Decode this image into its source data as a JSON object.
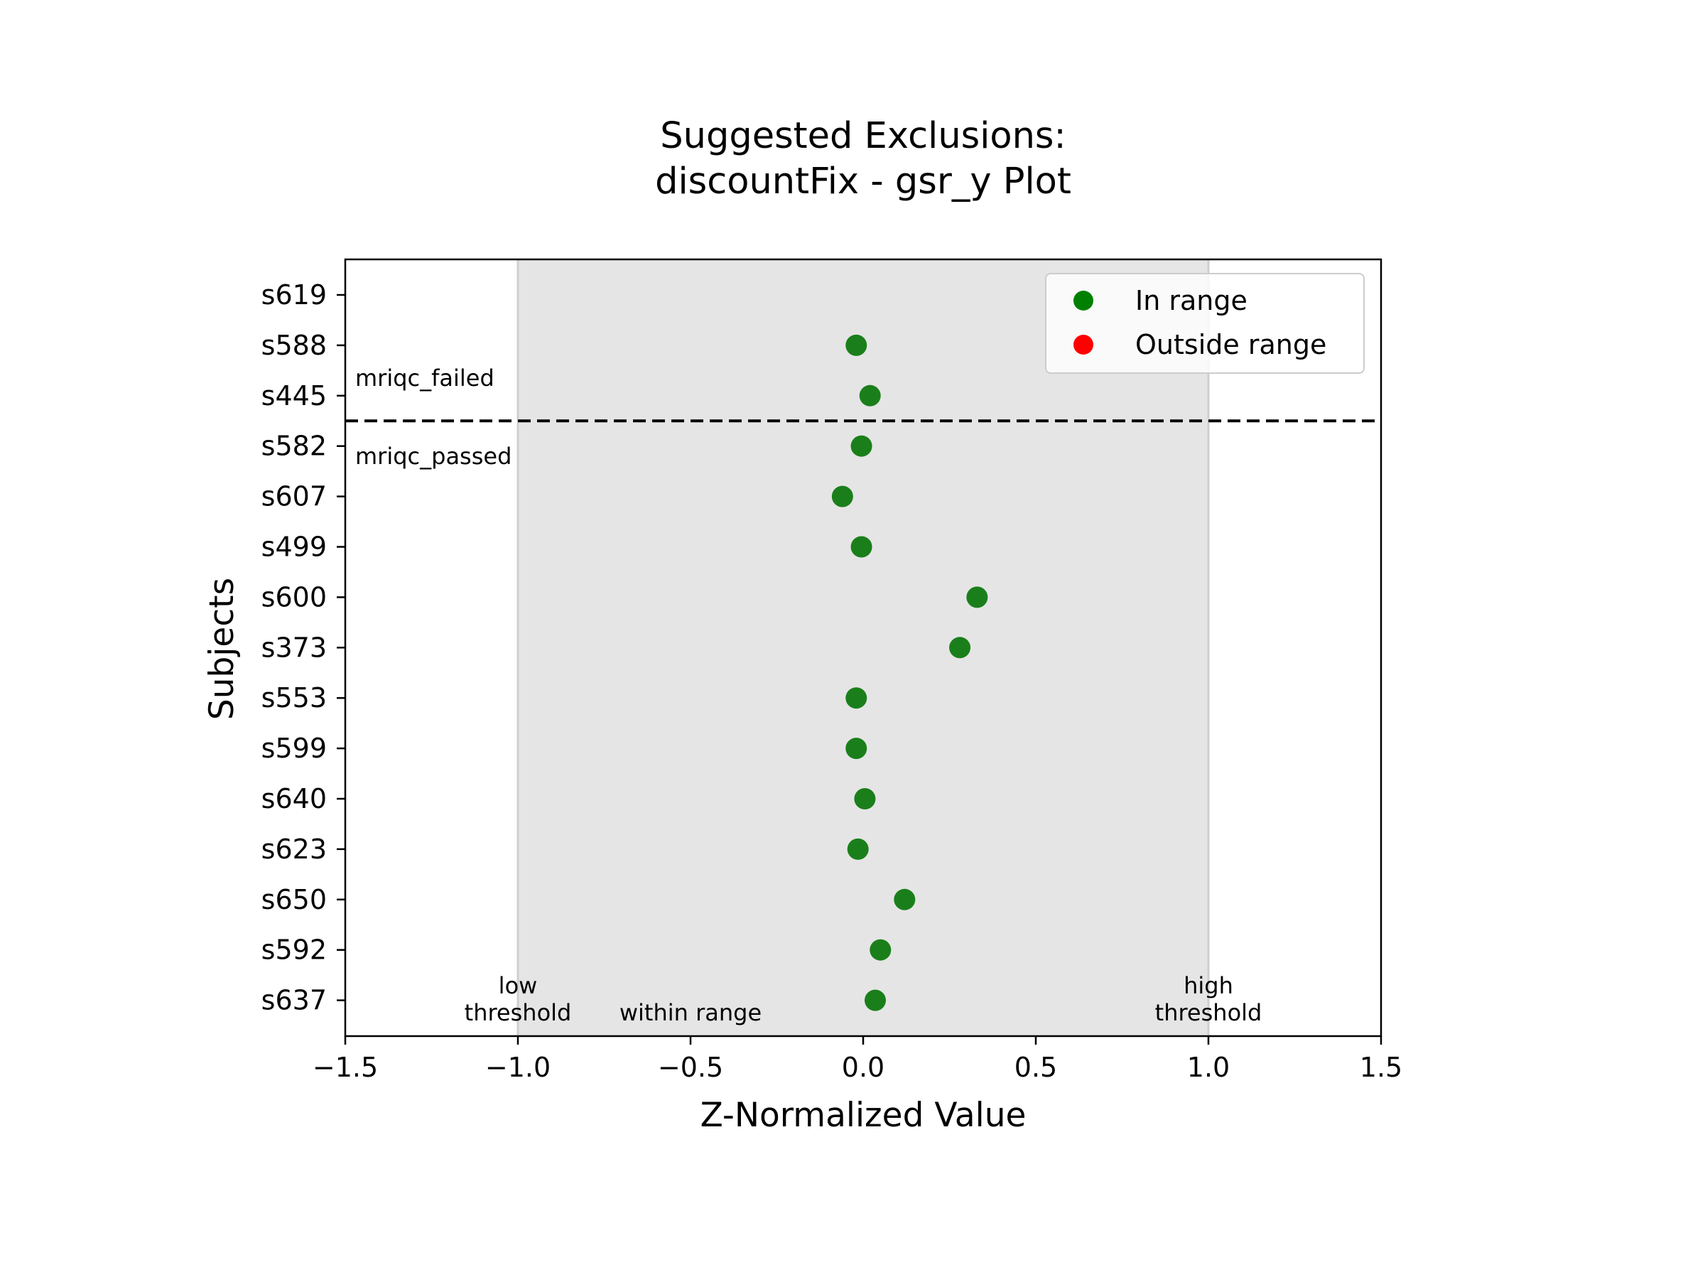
{
  "chart_data": {
    "type": "scatter",
    "title": "Suggested Exclusions:\ndiscountFix - gsr_y Plot",
    "xlabel": "Z-Normalized Value",
    "ylabel": "Subjects",
    "xlim": [
      -1.5,
      1.5
    ],
    "x_ticks": [
      -1.5,
      -1.0,
      -0.5,
      0.0,
      0.5,
      1.0,
      1.5
    ],
    "x_tick_labels": [
      "−1.5",
      "−1.0",
      "−0.5",
      "0.0",
      "0.5",
      "1.0",
      "1.5"
    ],
    "categories": [
      "s619",
      "s588",
      "s445",
      "s582",
      "s607",
      "s499",
      "s600",
      "s373",
      "s553",
      "s599",
      "s640",
      "s623",
      "s650",
      "s592",
      "s637"
    ],
    "series": [
      {
        "name": "In range",
        "color": "#1a7f1a",
        "points": [
          {
            "subject": "s588",
            "x": -0.02
          },
          {
            "subject": "s445",
            "x": 0.02
          },
          {
            "subject": "s582",
            "x": -0.005
          },
          {
            "subject": "s607",
            "x": -0.06
          },
          {
            "subject": "s499",
            "x": -0.005
          },
          {
            "subject": "s600",
            "x": 0.33
          },
          {
            "subject": "s373",
            "x": 0.28
          },
          {
            "subject": "s553",
            "x": -0.02
          },
          {
            "subject": "s599",
            "x": -0.02
          },
          {
            "subject": "s640",
            "x": 0.005
          },
          {
            "subject": "s623",
            "x": -0.015
          },
          {
            "subject": "s650",
            "x": 0.12
          },
          {
            "subject": "s592",
            "x": 0.05
          },
          {
            "subject": "s637",
            "x": 0.035
          }
        ]
      },
      {
        "name": "Outside range",
        "color": "#ff0000",
        "points": []
      }
    ],
    "legend": {
      "position": "top-right",
      "entries": [
        {
          "label": "In range",
          "color": "#008000"
        },
        {
          "label": "Outside range",
          "color": "#ff0000"
        }
      ]
    },
    "shaded_region": {
      "x_from": -1.0,
      "x_to": 1.0,
      "color": "#e5e5e5"
    },
    "divider": {
      "between": [
        "s445",
        "s582"
      ],
      "style": "dashed"
    },
    "annotations": {
      "group_above": "mriqc_failed",
      "group_below": "mriqc_passed",
      "low_threshold": "low\nthreshold",
      "within_range": "within range",
      "high_threshold": "high\nthreshold"
    },
    "grid": false
  }
}
